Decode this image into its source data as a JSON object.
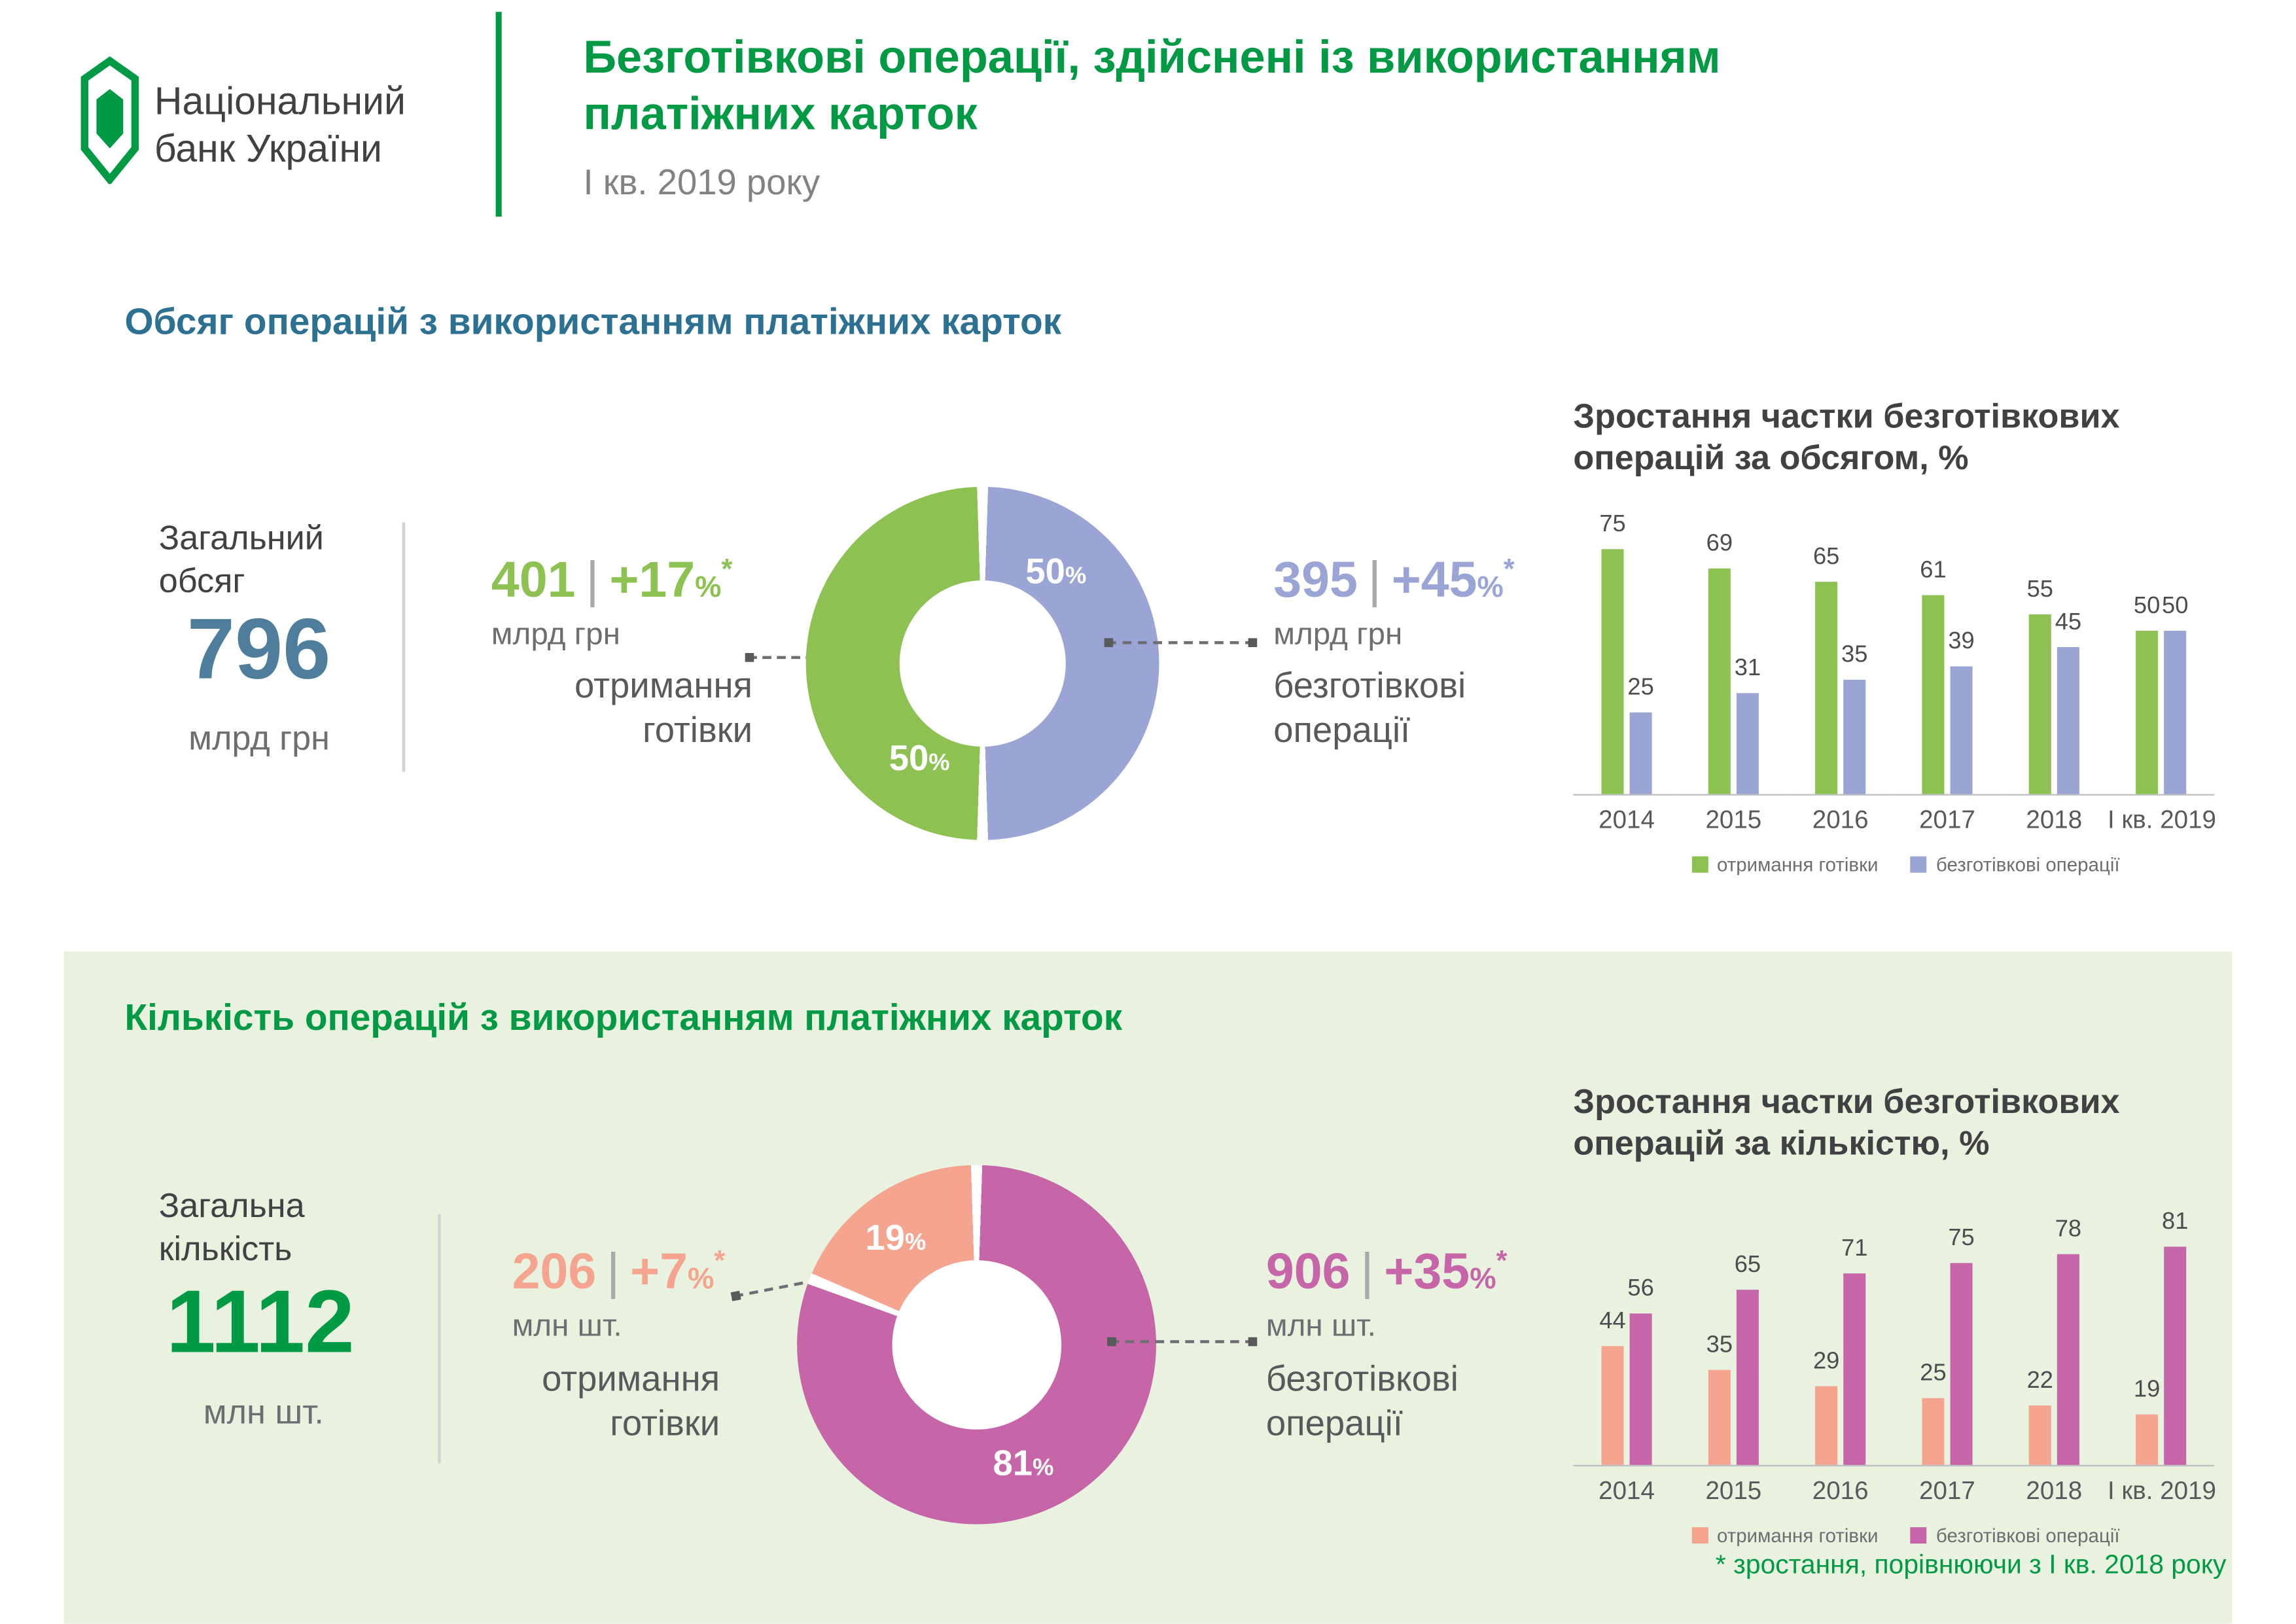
{
  "colors": {
    "brand_green": "#009A44",
    "cash_green": "#8DC152",
    "cashless_lavender": "#9AA5D6",
    "heading_blue": "#2C7092",
    "total_blue": "#4E7E9B",
    "cash_salmon": "#F5A48F",
    "cashless_magenta": "#C765A9",
    "panel_bg": "#E8F2DF",
    "text_dark": "#414042",
    "text_gray": "#6D6E71"
  },
  "header": {
    "bank_name_line1": "Національний",
    "bank_name_line2": "банк України",
    "title_line1": "Безготівкові операції, здійснені із використанням",
    "title_line2": "платіжних карток",
    "subtitle": "І кв. 2019 року"
  },
  "volume_section": {
    "heading": "Обсяг операцій з використанням платіжних карток",
    "total_label_line1": "Загальний",
    "total_label_line2": "обсяг",
    "total_value": "796",
    "total_unit": "млрд грн",
    "cash": {
      "value": "401",
      "separator": "|",
      "delta": "+17",
      "percent_sign": "%",
      "footnote_mark": "*",
      "unit": "млрд грн",
      "label_line1": "отримання",
      "label_line2": "готівки"
    },
    "cashless": {
      "value": "395",
      "separator": "|",
      "delta": "+45",
      "percent_sign": "%",
      "footnote_mark": "*",
      "unit": "млрд грн",
      "label_line1": "безготівкові",
      "label_line2": "операції"
    },
    "donut_cashless_value": "50",
    "donut_cash_value": "50",
    "percent_sign": "%",
    "chart_title_line1": "Зростання частки безготівкових",
    "chart_title_line2": "операцій за обсягом, %"
  },
  "count_section": {
    "heading": "Кількість операцій з використанням платіжних карток",
    "total_label_line1": "Загальна",
    "total_label_line2": "кількість",
    "total_value": "1112",
    "total_unit": "млн шт.",
    "cash": {
      "value": "206",
      "separator": "|",
      "delta": "+7",
      "percent_sign": "%",
      "footnote_mark": "*",
      "unit": "млн шт.",
      "label_line1": "отримання",
      "label_line2": "готівки"
    },
    "cashless": {
      "value": "906",
      "separator": "|",
      "delta": "+35",
      "percent_sign": "%",
      "footnote_mark": "*",
      "unit": "млн шт.",
      "label_line1": "безготівкові",
      "label_line2": "операції"
    },
    "donut_cash_value": "19",
    "donut_cashless_value": "81",
    "percent_sign": "%",
    "chart_title_line1": "Зростання частки безготівкових",
    "chart_title_line2": "операцій за кількістю, %"
  },
  "footnote": "* зростання, порівнюючи з І кв. 2018 року",
  "chart_data": [
    {
      "type": "pie",
      "labels": [
        "безготівкові операції",
        "отримання готівки"
      ],
      "values": [
        50,
        50
      ],
      "colors": [
        "#9AA5D6",
        "#8DC152"
      ],
      "unit": "%"
    },
    {
      "type": "bar",
      "title": "Зростання частки безготівкових операцій за обсягом, %",
      "categories": [
        "2014",
        "2015",
        "2016",
        "2017",
        "2018",
        "І кв. 2019"
      ],
      "series": [
        {
          "name": "отримання готівки",
          "color": "#8DC152",
          "values": [
            75,
            69,
            65,
            61,
            55,
            50
          ]
        },
        {
          "name": "безготівкові операції",
          "color": "#9AA5D6",
          "values": [
            25,
            31,
            35,
            39,
            45,
            50
          ]
        }
      ],
      "legend_position": "bottom"
    },
    {
      "type": "pie",
      "labels": [
        "безготівкові операції",
        "отримання готівки"
      ],
      "values": [
        81,
        19
      ],
      "colors": [
        "#C765A9",
        "#F5A48F"
      ],
      "unit": "%"
    },
    {
      "type": "bar",
      "title": "Зростання частки безготівкових операцій за кількістю, %",
      "categories": [
        "2014",
        "2015",
        "2016",
        "2017",
        "2018",
        "І кв. 2019"
      ],
      "series": [
        {
          "name": "отримання готівки",
          "color": "#F5A48F",
          "values": [
            44,
            35,
            29,
            25,
            22,
            19
          ]
        },
        {
          "name": "безготівкові операції",
          "color": "#C765A9",
          "values": [
            56,
            65,
            71,
            75,
            78,
            81
          ]
        }
      ],
      "legend_position": "bottom"
    }
  ]
}
